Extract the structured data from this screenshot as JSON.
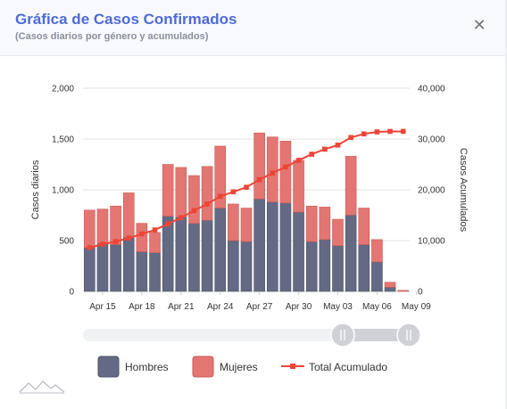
{
  "header": {
    "title": "Gráfica de Casos Confirmados",
    "subtitle": "(Casos diarios por género y acumulados)",
    "close_icon": "close-icon"
  },
  "chart_data": {
    "type": "bar",
    "stacked": true,
    "x_ticks": [
      "Apr 15",
      "Apr 18",
      "Apr 21",
      "Apr 24",
      "Apr 27",
      "Apr 30",
      "May 03",
      "May 06",
      "May 09"
    ],
    "categories": [
      "Apr 14",
      "Apr 15",
      "Apr 16",
      "Apr 17",
      "Apr 18",
      "Apr 19",
      "Apr 20",
      "Apr 21",
      "Apr 22",
      "Apr 23",
      "Apr 24",
      "Apr 25",
      "Apr 26",
      "Apr 27",
      "Apr 28",
      "Apr 29",
      "Apr 30",
      "May 01",
      "May 02",
      "May 03",
      "May 04",
      "May 05",
      "May 06",
      "May 07",
      "May 08"
    ],
    "series": [
      {
        "name": "Hombres",
        "color": "#646a83",
        "axis": "left",
        "values": [
          430,
          470,
          460,
          530,
          390,
          380,
          740,
          730,
          670,
          700,
          820,
          500,
          490,
          910,
          880,
          870,
          780,
          490,
          510,
          450,
          750,
          460,
          290,
          40,
          0
        ]
      },
      {
        "name": "Mujeres",
        "color": "#e37672",
        "axis": "left",
        "values": [
          370,
          340,
          380,
          440,
          280,
          200,
          510,
          490,
          470,
          530,
          610,
          360,
          330,
          650,
          640,
          610,
          510,
          350,
          320,
          260,
          580,
          360,
          220,
          50,
          10
        ]
      },
      {
        "name": "Total Acumulado",
        "color": "#ee4436",
        "axis": "right",
        "type": "line",
        "values": [
          8600,
          9300,
          9800,
          10500,
          11300,
          12100,
          13300,
          14500,
          15900,
          17200,
          18700,
          19600,
          20500,
          22000,
          23300,
          24500,
          25800,
          27000,
          28000,
          28800,
          30300,
          31000,
          31400,
          31500,
          31500
        ]
      }
    ],
    "ylabel": "Casos diarios",
    "ylabel_right": "Casos Acumulados",
    "y_ticks": [
      "0",
      "500",
      "1,000",
      "1,500",
      "2,000"
    ],
    "y2_ticks": [
      "0",
      "10,000",
      "20,000",
      "30,000",
      "40,000"
    ],
    "ylim": [
      0,
      2000
    ],
    "y2lim": [
      0,
      40000
    ],
    "grid": true,
    "legend_position": "bottom"
  },
  "legend": {
    "items": [
      "Hombres",
      "Mujeres",
      "Total Acumulado"
    ]
  }
}
